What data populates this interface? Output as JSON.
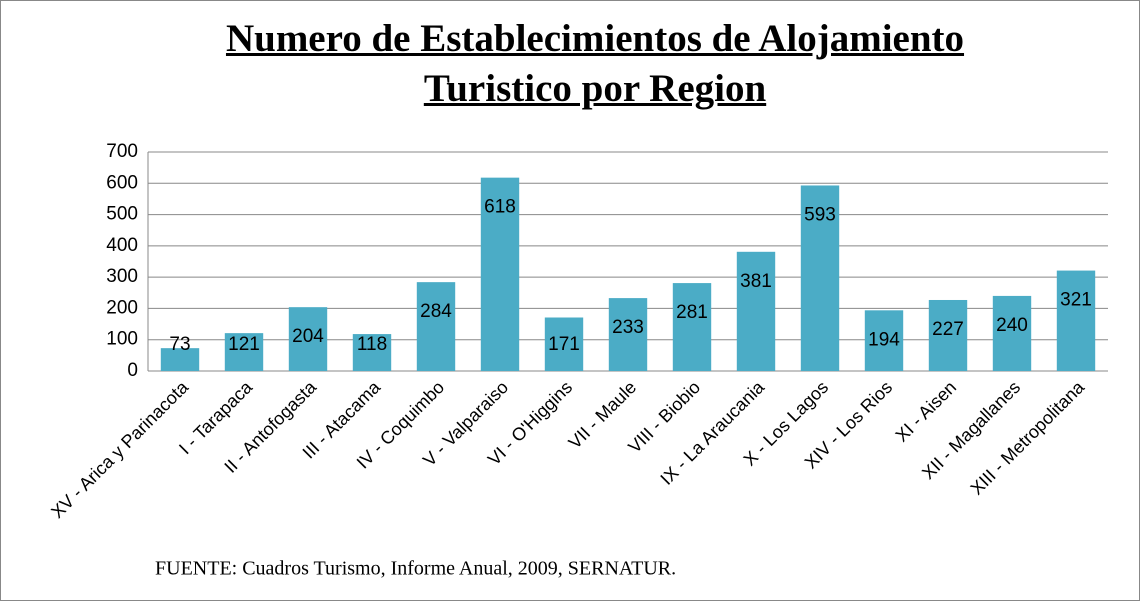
{
  "chart_data": {
    "type": "bar",
    "title": "Numero de Establecimientos de Alojamiento Turistico por Region",
    "source": "FUENTE: Cuadros Turismo, Informe Anual, 2009, SERNATUR.",
    "categories": [
      "XV - Arica y Parinacota",
      "I - Tarapaca",
      "II - Antofogasta",
      "III - Atacama",
      "IV - Coquimbo",
      "V - Valparaiso",
      "VI - O'Higgins",
      "VII - Maule",
      "VIII - Biobio",
      "IX - La Araucania",
      "X - Los Lagos",
      "XIV - Los Rios",
      "XI - Aisen",
      "XII - Magallanes",
      "XIII - Metropolitana"
    ],
    "values": [
      73,
      121,
      204,
      118,
      284,
      618,
      171,
      233,
      281,
      381,
      593,
      194,
      227,
      240,
      321
    ],
    "color": "#4bacc6",
    "ylim": [
      0,
      700
    ],
    "yticks": [
      0,
      100,
      200,
      300,
      400,
      500,
      600,
      700
    ],
    "grid": true
  }
}
